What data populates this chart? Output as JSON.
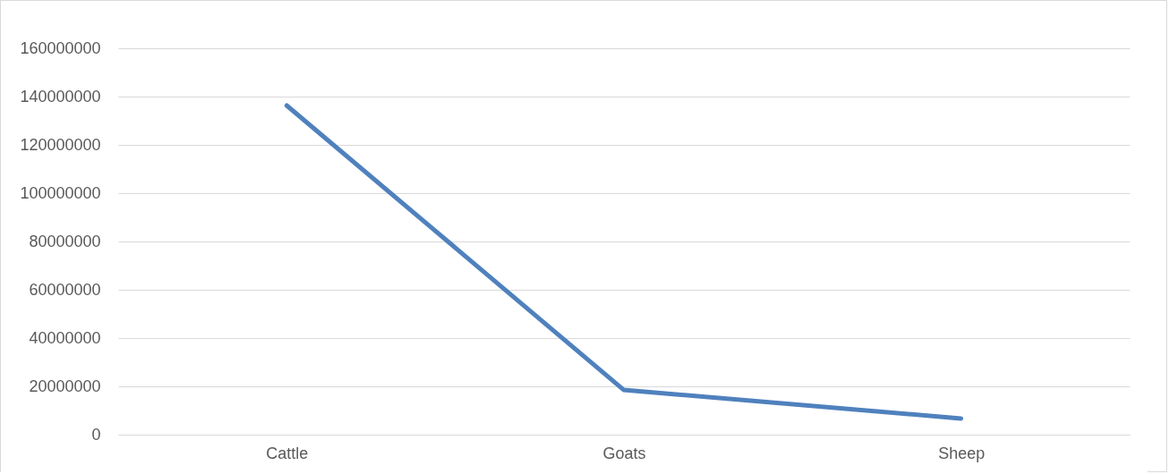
{
  "chart_data": {
    "type": "line",
    "categories": [
      "Cattle",
      "Goats",
      "Sheep"
    ],
    "series": [
      {
        "color": "#4f81bd",
        "values": [
          136300000,
          18500000,
          6700000
        ]
      }
    ],
    "ylim": [
      0,
      160000000
    ],
    "yticks": [
      0,
      20000000,
      40000000,
      60000000,
      80000000,
      100000000,
      120000000,
      140000000,
      160000000
    ],
    "grid": "y",
    "legend": false,
    "marker": "none",
    "line_style": "solid"
  }
}
